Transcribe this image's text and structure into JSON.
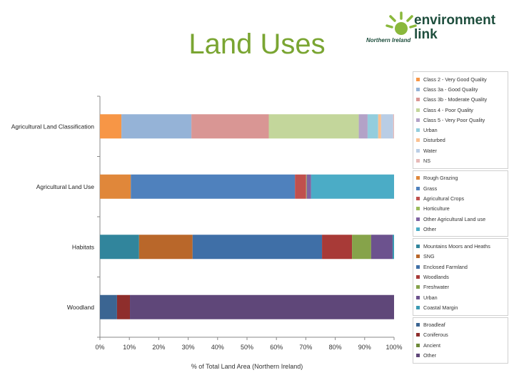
{
  "page": {
    "title": "Land Uses"
  },
  "logo": {
    "org_line1": "environment",
    "org_line2": "link",
    "region": "Northern Ireland"
  },
  "chart_data": {
    "type": "bar",
    "orientation": "horizontal",
    "stacked": "percent",
    "xlabel": "% of Total Land Area (Northern Ireland)",
    "xlim": [
      0,
      100
    ],
    "x_ticks": [
      "0%",
      "10%",
      "20%",
      "30%",
      "40%",
      "50%",
      "60%",
      "70%",
      "80%",
      "90%",
      "100%"
    ],
    "categories": [
      "Agricultural Land Classification",
      "Agricultural Land Use",
      "Habitats",
      "Woodland"
    ],
    "bars": [
      {
        "category": "Agricultural Land Classification",
        "segments": [
          {
            "name": "Class 2 - Very Good Quality",
            "value": 7.3,
            "color": "#f79646"
          },
          {
            "name": "Class 3a - Good Quality",
            "value": 23.8,
            "color": "#95b3d7"
          },
          {
            "name": "Class 3b - Moderate Quality",
            "value": 26.3,
            "color": "#d99694"
          },
          {
            "name": "Class 4 - Poor Quality",
            "value": 30.6,
            "color": "#c3d69b"
          },
          {
            "name": "Class 5 - Very Poor Quality",
            "value": 3.0,
            "color": "#b3a2c7"
          },
          {
            "name": "Urban",
            "value": 3.6,
            "color": "#93cddd"
          },
          {
            "name": "Disturbed",
            "value": 1.0,
            "color": "#fac090"
          },
          {
            "name": "Water",
            "value": 4.1,
            "color": "#b9cde5"
          },
          {
            "name": "NS",
            "value": 0.3,
            "color": "#e6b9b8"
          }
        ]
      },
      {
        "category": "Agricultural Land Use",
        "segments": [
          {
            "name": "Rough Grazing",
            "value": 10.5,
            "color": "#e0873a"
          },
          {
            "name": "Grass",
            "value": 55.8,
            "color": "#4f81bd"
          },
          {
            "name": "Agricultural Crops",
            "value": 3.8,
            "color": "#c0504d"
          },
          {
            "name": "Horticulture",
            "value": 0.2,
            "color": "#9bbb59"
          },
          {
            "name": "Other Agricultural Land use",
            "value": 1.5,
            "color": "#8064a2"
          },
          {
            "name": "Other",
            "value": 28.2,
            "color": "#4bacc6"
          }
        ]
      },
      {
        "category": "Habitats",
        "segments": [
          {
            "name": "Mountains Moors and Heaths",
            "value": 13.3,
            "color": "#31859c"
          },
          {
            "name": "SNG",
            "value": 18.2,
            "color": "#b9672a"
          },
          {
            "name": "Enclosed Farmland",
            "value": 44.0,
            "color": "#3f6fa7"
          },
          {
            "name": "Woodlands",
            "value": 10.2,
            "color": "#a83a37"
          },
          {
            "name": "Freshwater",
            "value": 6.5,
            "color": "#86a34a"
          },
          {
            "name": "Urban",
            "value": 7.3,
            "color": "#6c528e"
          },
          {
            "name": "Coastal Margin",
            "value": 0.5,
            "color": "#3a9ab3"
          }
        ]
      },
      {
        "category": "Woodland",
        "segments": [
          {
            "name": "Broadleaf",
            "value": 5.8,
            "color": "#3b6592"
          },
          {
            "name": "Coniferous",
            "value": 4.4,
            "color": "#8e2e2c"
          },
          {
            "name": "Ancient",
            "value": 0.0,
            "color": "#6e8a3a"
          },
          {
            "name": "Other",
            "value": 89.8,
            "color": "#5f4779"
          }
        ]
      }
    ],
    "legend_position": "right",
    "grid": false
  }
}
